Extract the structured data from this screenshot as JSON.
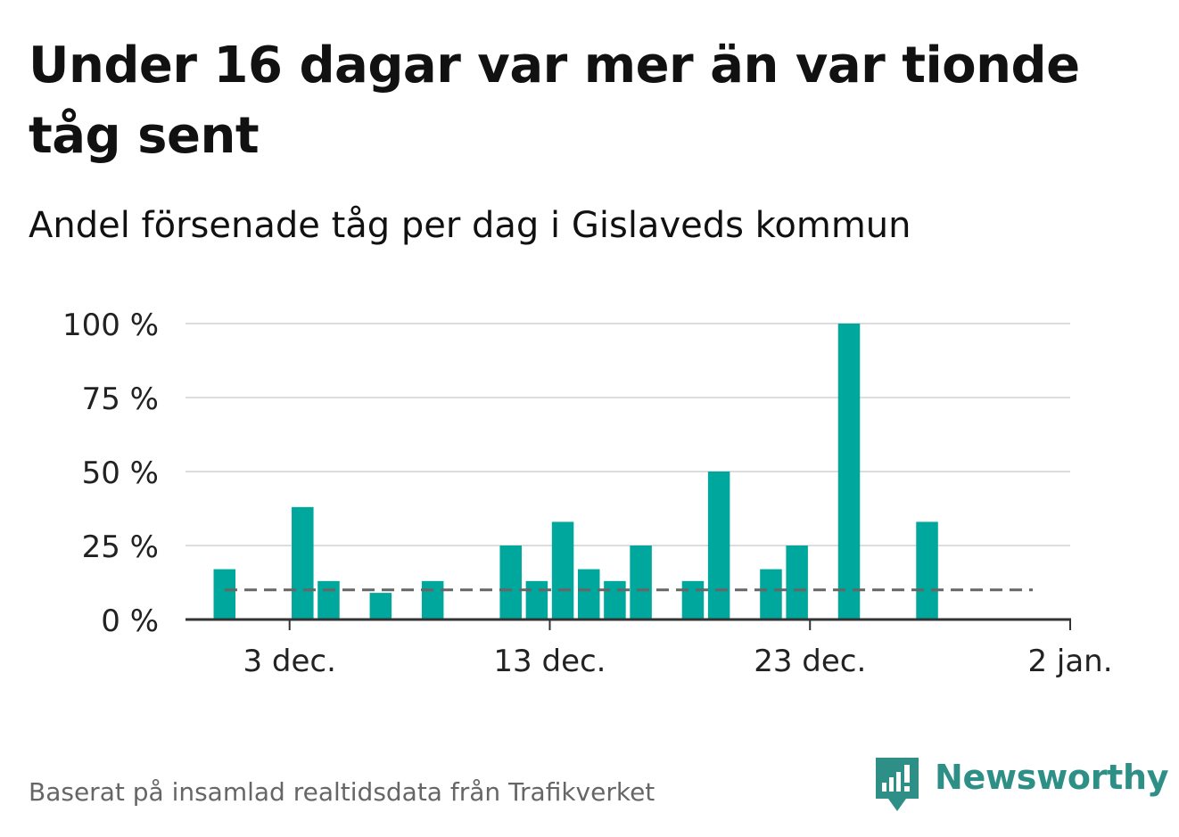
{
  "title": "Under 16 dagar var mer än var tionde tåg sent",
  "subtitle": "Andel försenade tåg per dag i Gislaveds kommun",
  "source": "Baserat på insamlad realtidsdata från Trafikverket",
  "brand": {
    "name": "Newsworthy",
    "color": "#2e8f87"
  },
  "chart_data": {
    "type": "bar",
    "x_type": "date",
    "x_range": [
      "2023-11-29",
      "2024-01-02"
    ],
    "xticks": [
      {
        "date": "2023-12-03",
        "label": "3 dec."
      },
      {
        "date": "2023-12-13",
        "label": "13 dec."
      },
      {
        "date": "2023-12-23",
        "label": "23 dec."
      },
      {
        "date": "2024-01-02",
        "label": "2 jan."
      }
    ],
    "ylim": [
      0,
      100
    ],
    "yticks": [
      {
        "value": 0,
        "label": "0 %"
      },
      {
        "value": 25,
        "label": "25 %"
      },
      {
        "value": 50,
        "label": "50 %"
      },
      {
        "value": 75,
        "label": "75 %"
      },
      {
        "value": 100,
        "label": "100 %"
      }
    ],
    "grid": true,
    "bar_color": "#00a79d",
    "reference_line": {
      "value": 10,
      "style": "dashed",
      "color": "#666666"
    },
    "series": [
      {
        "x": [
          "2023-11-30",
          "2023-12-01",
          "2023-12-02",
          "2023-12-03",
          "2023-12-04",
          "2023-12-05",
          "2023-12-06",
          "2023-12-07",
          "2023-12-08",
          "2023-12-09",
          "2023-12-10",
          "2023-12-11",
          "2023-12-12",
          "2023-12-13",
          "2023-12-14",
          "2023-12-15",
          "2023-12-16",
          "2023-12-17",
          "2023-12-18",
          "2023-12-19",
          "2023-12-20",
          "2023-12-21",
          "2023-12-22",
          "2023-12-23",
          "2023-12-24",
          "2023-12-25",
          "2023-12-26",
          "2023-12-27",
          "2023-12-28",
          "2023-12-29",
          "2023-12-30",
          "2023-12-31"
        ],
        "values": [
          17,
          0,
          0,
          38,
          13,
          0,
          9,
          0,
          13,
          0,
          0,
          25,
          13,
          33,
          17,
          13,
          25,
          0,
          13,
          50,
          0,
          17,
          25,
          0,
          100,
          0,
          0,
          33,
          0,
          0,
          0,
          0
        ]
      }
    ]
  }
}
